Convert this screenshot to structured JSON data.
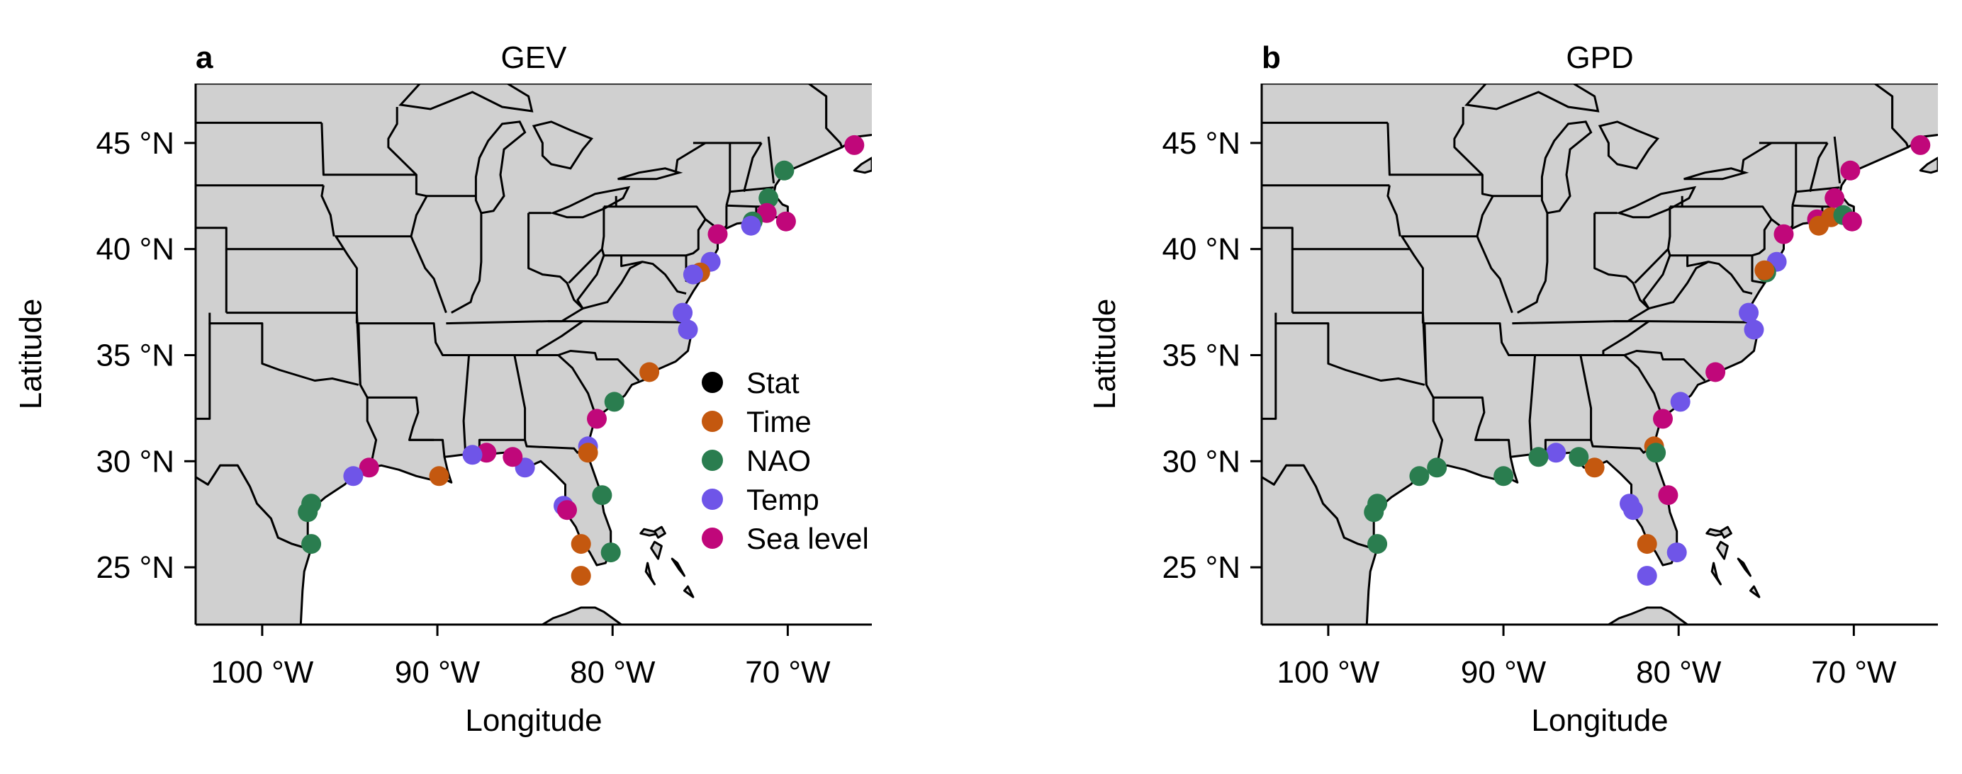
{
  "figure": {
    "x_axis_title": "Longitude",
    "y_axis_title": "Latitude",
    "x_ticks": [
      {
        "value": -100,
        "label": "100 °W"
      },
      {
        "value": -90,
        "label": "90 °W"
      },
      {
        "value": -80,
        "label": "80 °W"
      },
      {
        "value": -70,
        "label": "70 °W"
      }
    ],
    "y_ticks": [
      {
        "value": 25,
        "label": "25 °N"
      },
      {
        "value": 30,
        "label": "30 °N"
      },
      {
        "value": 35,
        "label": "35 °N"
      },
      {
        "value": 40,
        "label": "40 °N"
      },
      {
        "value": 45,
        "label": "45 °N"
      }
    ],
    "lon_range": [
      -103.8,
      -65.2
    ],
    "lat_range": [
      22.3,
      47.8
    ],
    "legend": [
      {
        "key": "Stat",
        "label": "Stat",
        "color": "#000000"
      },
      {
        "key": "Time",
        "label": "Time",
        "color": "#c4580f"
      },
      {
        "key": "NAO",
        "label": "NAO",
        "color": "#2a7d4f"
      },
      {
        "key": "Temp",
        "label": "Temp",
        "color": "#6f55e8"
      },
      {
        "key": "Sea level",
        "label": "Sea level",
        "color": "#c0077a"
      }
    ],
    "legend_placement": "lower-right of panel a",
    "land_color": "#d0d0d0"
  },
  "chart_data": [
    {
      "type": "scatter",
      "panel_letter": "a",
      "title": "GEV",
      "points": [
        {
          "lon": -66.2,
          "lat": 44.9,
          "cat": "Sea level"
        },
        {
          "lon": -70.2,
          "lat": 43.7,
          "cat": "NAO"
        },
        {
          "lon": -71.1,
          "lat": 42.4,
          "cat": "NAO"
        },
        {
          "lon": -71.2,
          "lat": 41.7,
          "cat": "Sea level"
        },
        {
          "lon": -72.0,
          "lat": 41.3,
          "cat": "NAO"
        },
        {
          "lon": -70.1,
          "lat": 41.3,
          "cat": "Sea level"
        },
        {
          "lon": -72.1,
          "lat": 41.1,
          "cat": "Temp"
        },
        {
          "lon": -74.0,
          "lat": 40.7,
          "cat": "Sea level"
        },
        {
          "lon": -74.4,
          "lat": 39.4,
          "cat": "Temp"
        },
        {
          "lon": -75.0,
          "lat": 38.9,
          "cat": "Time"
        },
        {
          "lon": -75.4,
          "lat": 38.8,
          "cat": "Temp"
        },
        {
          "lon": -76.0,
          "lat": 37.0,
          "cat": "Temp"
        },
        {
          "lon": -75.7,
          "lat": 36.2,
          "cat": "Temp"
        },
        {
          "lon": -77.9,
          "lat": 34.2,
          "cat": "Time"
        },
        {
          "lon": -79.9,
          "lat": 32.8,
          "cat": "NAO"
        },
        {
          "lon": -80.9,
          "lat": 32.0,
          "cat": "Sea level"
        },
        {
          "lon": -81.4,
          "lat": 30.7,
          "cat": "Temp"
        },
        {
          "lon": -81.4,
          "lat": 30.4,
          "cat": "Time"
        },
        {
          "lon": -80.6,
          "lat": 28.4,
          "cat": "NAO"
        },
        {
          "lon": -80.1,
          "lat": 25.7,
          "cat": "NAO"
        },
        {
          "lon": -81.8,
          "lat": 24.6,
          "cat": "Time"
        },
        {
          "lon": -81.8,
          "lat": 26.1,
          "cat": "Time"
        },
        {
          "lon": -82.8,
          "lat": 27.9,
          "cat": "Temp"
        },
        {
          "lon": -82.6,
          "lat": 27.7,
          "cat": "Sea level"
        },
        {
          "lon": -85.0,
          "lat": 29.7,
          "cat": "Temp"
        },
        {
          "lon": -85.7,
          "lat": 30.2,
          "cat": "Sea level"
        },
        {
          "lon": -87.2,
          "lat": 30.4,
          "cat": "Sea level"
        },
        {
          "lon": -88.0,
          "lat": 30.3,
          "cat": "Temp"
        },
        {
          "lon": -89.9,
          "lat": 29.3,
          "cat": "Time"
        },
        {
          "lon": -93.9,
          "lat": 29.7,
          "cat": "Sea level"
        },
        {
          "lon": -94.8,
          "lat": 29.3,
          "cat": "Temp"
        },
        {
          "lon": -97.2,
          "lat": 28.0,
          "cat": "NAO"
        },
        {
          "lon": -97.4,
          "lat": 27.6,
          "cat": "NAO"
        },
        {
          "lon": -97.2,
          "lat": 26.1,
          "cat": "NAO"
        }
      ]
    },
    {
      "type": "scatter",
      "panel_letter": "b",
      "title": "GPD",
      "points": [
        {
          "lon": -66.2,
          "lat": 44.9,
          "cat": "Sea level"
        },
        {
          "lon": -70.2,
          "lat": 43.7,
          "cat": "Sea level"
        },
        {
          "lon": -71.1,
          "lat": 42.4,
          "cat": "Sea level"
        },
        {
          "lon": -72.1,
          "lat": 41.4,
          "cat": "Sea level"
        },
        {
          "lon": -72.0,
          "lat": 41.1,
          "cat": "Time"
        },
        {
          "lon": -71.3,
          "lat": 41.5,
          "cat": "Time"
        },
        {
          "lon": -70.6,
          "lat": 41.6,
          "cat": "NAO"
        },
        {
          "lon": -70.1,
          "lat": 41.3,
          "cat": "Sea level"
        },
        {
          "lon": -74.0,
          "lat": 40.7,
          "cat": "Sea level"
        },
        {
          "lon": -74.4,
          "lat": 39.4,
          "cat": "Temp"
        },
        {
          "lon": -75.0,
          "lat": 38.9,
          "cat": "NAO"
        },
        {
          "lon": -75.1,
          "lat": 39.0,
          "cat": "Time"
        },
        {
          "lon": -76.0,
          "lat": 37.0,
          "cat": "Temp"
        },
        {
          "lon": -75.7,
          "lat": 36.2,
          "cat": "Temp"
        },
        {
          "lon": -77.9,
          "lat": 34.2,
          "cat": "Sea level"
        },
        {
          "lon": -79.9,
          "lat": 32.8,
          "cat": "Temp"
        },
        {
          "lon": -80.9,
          "lat": 32.0,
          "cat": "Sea level"
        },
        {
          "lon": -81.4,
          "lat": 30.7,
          "cat": "Time"
        },
        {
          "lon": -81.3,
          "lat": 30.4,
          "cat": "NAO"
        },
        {
          "lon": -80.6,
          "lat": 28.4,
          "cat": "Sea level"
        },
        {
          "lon": -80.1,
          "lat": 25.7,
          "cat": "Temp"
        },
        {
          "lon": -81.8,
          "lat": 24.6,
          "cat": "Temp"
        },
        {
          "lon": -81.8,
          "lat": 26.1,
          "cat": "Time"
        },
        {
          "lon": -82.8,
          "lat": 28.0,
          "cat": "Temp"
        },
        {
          "lon": -82.6,
          "lat": 27.7,
          "cat": "Temp"
        },
        {
          "lon": -84.8,
          "lat": 29.7,
          "cat": "Time"
        },
        {
          "lon": -85.7,
          "lat": 30.2,
          "cat": "NAO"
        },
        {
          "lon": -87.0,
          "lat": 30.4,
          "cat": "Temp"
        },
        {
          "lon": -88.0,
          "lat": 30.2,
          "cat": "NAO"
        },
        {
          "lon": -90.0,
          "lat": 29.3,
          "cat": "NAO"
        },
        {
          "lon": -93.8,
          "lat": 29.7,
          "cat": "NAO"
        },
        {
          "lon": -94.8,
          "lat": 29.3,
          "cat": "NAO"
        },
        {
          "lon": -97.2,
          "lat": 28.0,
          "cat": "NAO"
        },
        {
          "lon": -97.4,
          "lat": 27.6,
          "cat": "NAO"
        },
        {
          "lon": -97.2,
          "lat": 26.1,
          "cat": "NAO"
        }
      ]
    }
  ]
}
